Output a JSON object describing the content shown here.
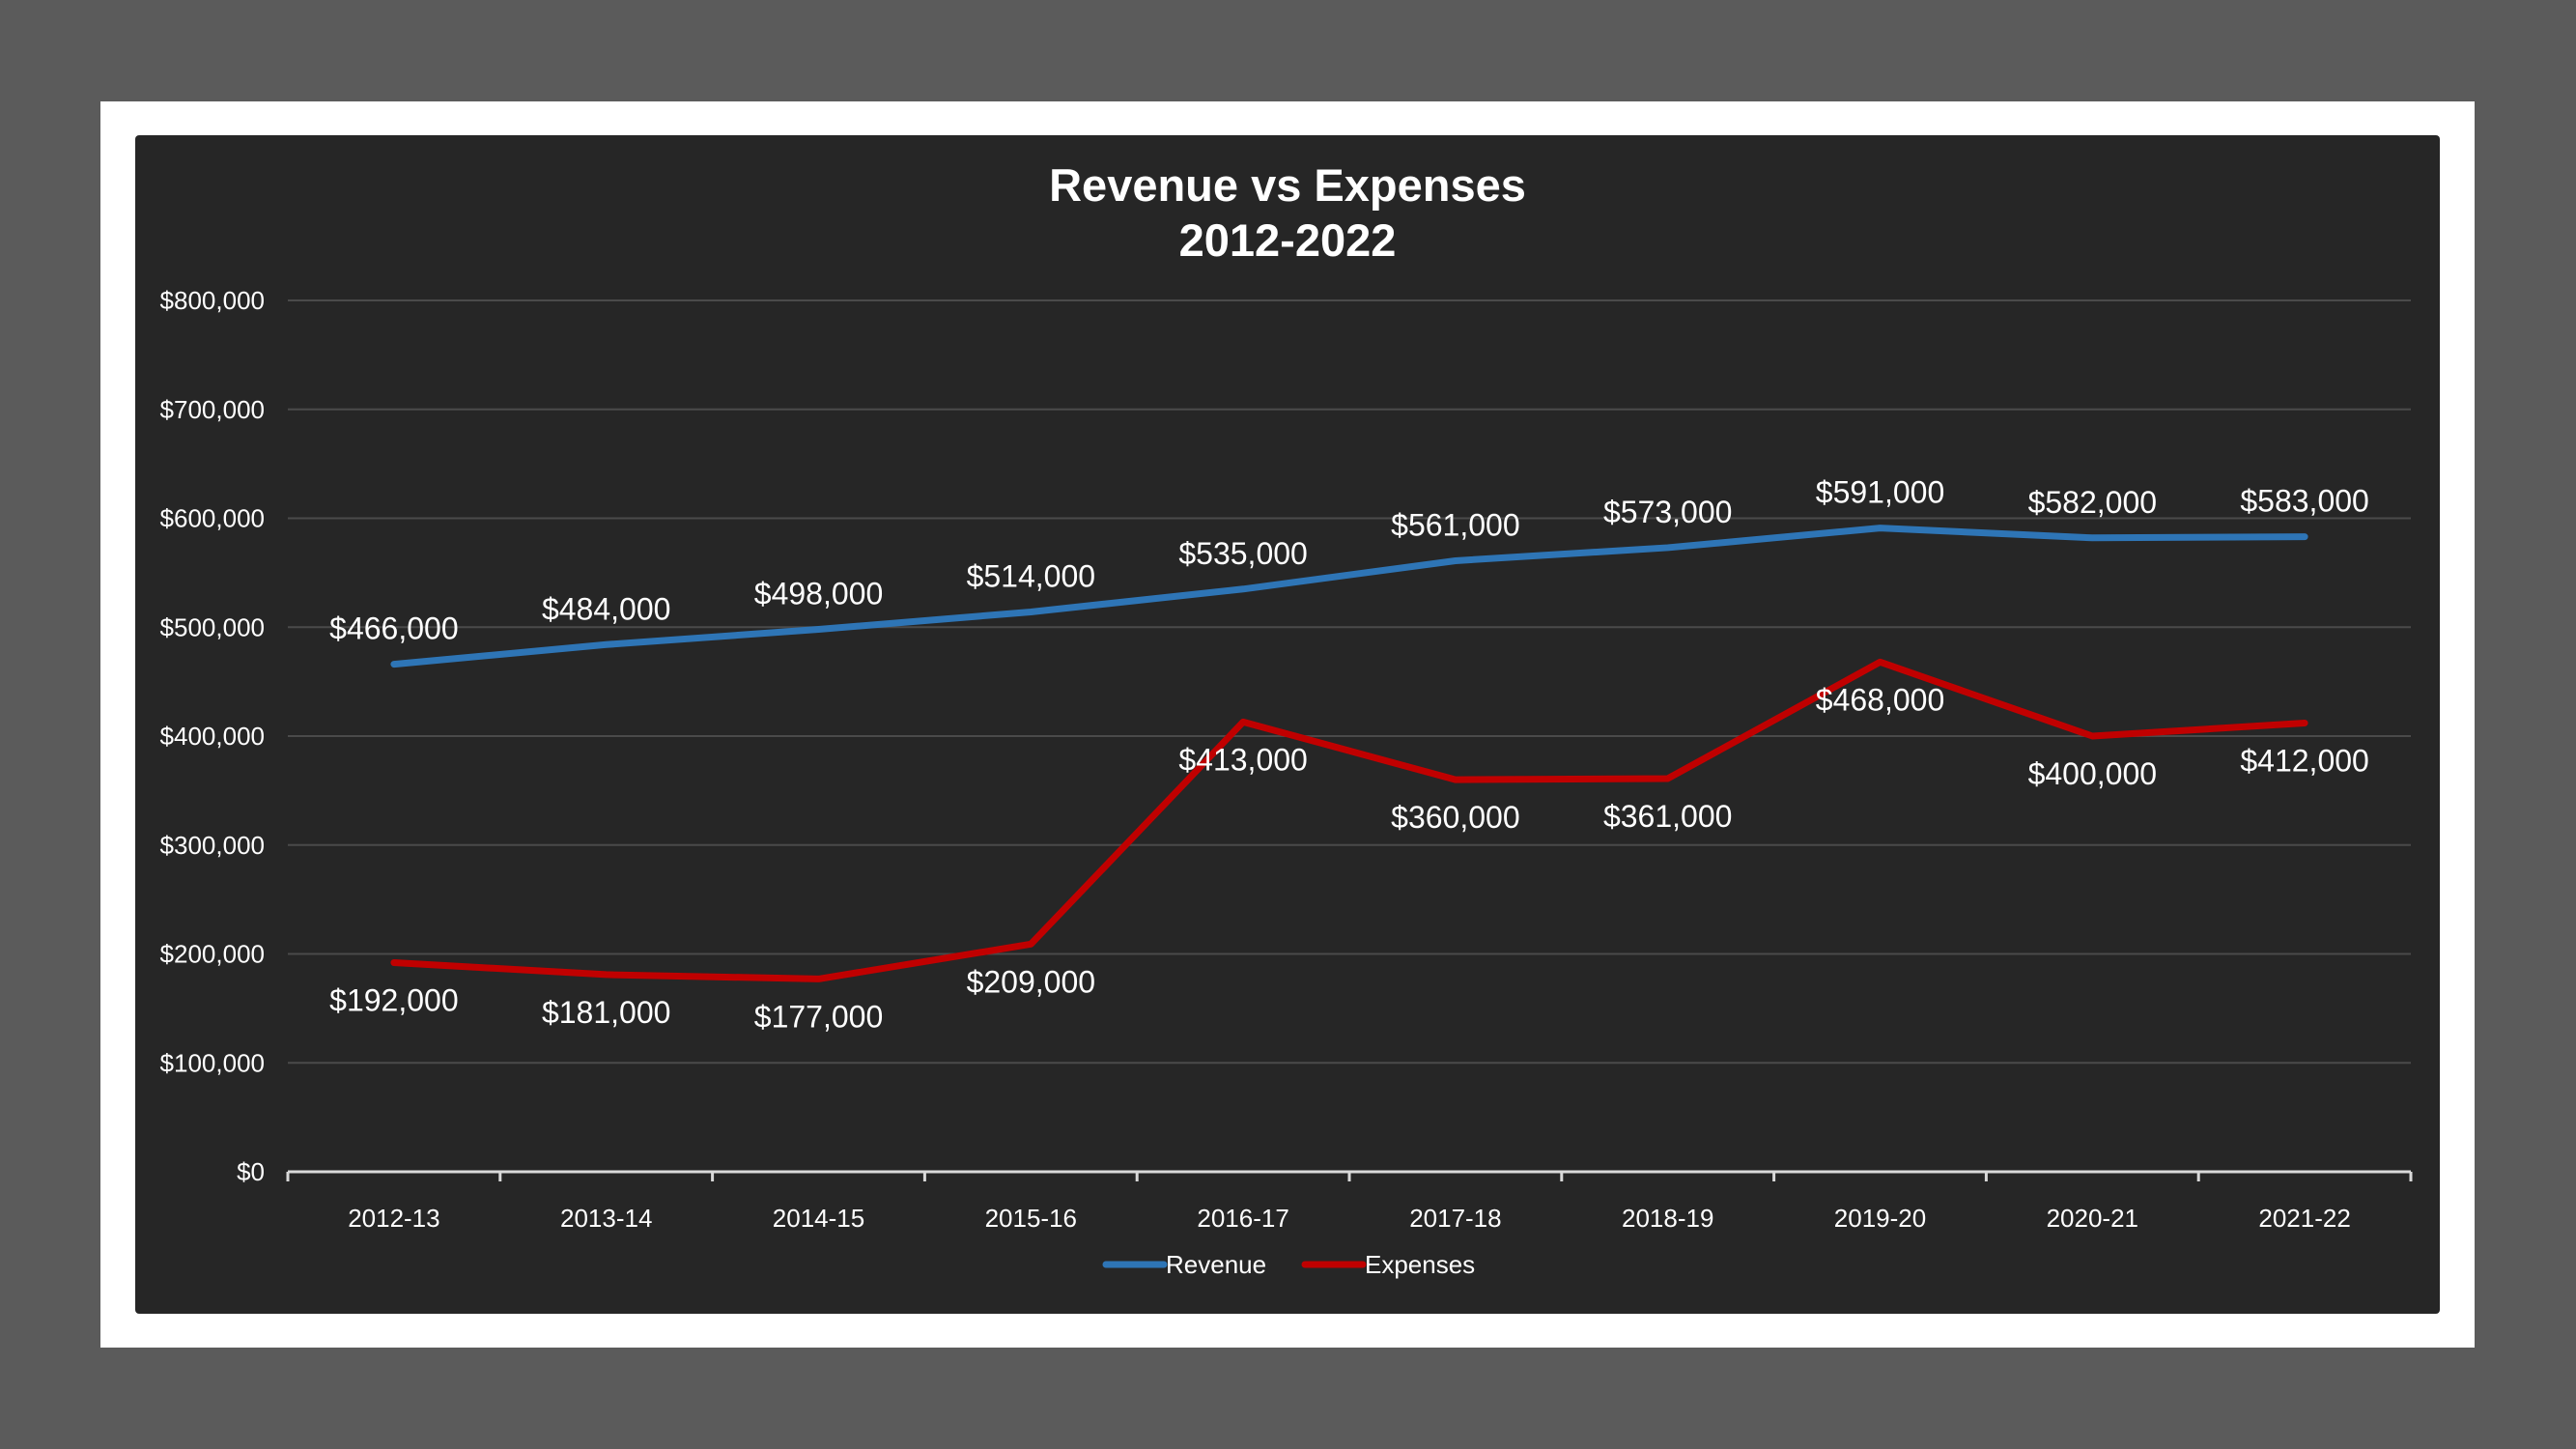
{
  "chart_data": {
    "type": "line",
    "title": "Revenue vs Expenses",
    "subtitle": "2012-2022",
    "categories": [
      "2012-13",
      "2013-14",
      "2014-15",
      "2015-16",
      "2016-17",
      "2017-18",
      "2018-19",
      "2019-20",
      "2020-21",
      "2021-22"
    ],
    "series": [
      {
        "name": "Revenue",
        "color": "#2e75b6",
        "values": [
          466000,
          484000,
          498000,
          514000,
          535000,
          561000,
          573000,
          591000,
          582000,
          583000
        ],
        "labels": [
          "$466,000",
          "$484,000",
          "$498,000",
          "$514,000",
          "$535,000",
          "$561,000",
          "$573,000",
          "$591,000",
          "$582,000",
          "$583,000"
        ]
      },
      {
        "name": "Expenses",
        "color": "#c00000",
        "values": [
          192000,
          181000,
          177000,
          209000,
          413000,
          360000,
          361000,
          468000,
          400000,
          412000
        ],
        "labels": [
          "$192,000",
          "$181,000",
          "$177,000",
          "$209,000",
          "$413,000",
          "$360,000",
          "$361,000",
          "$468,000",
          "$400,000",
          "$412,000"
        ]
      }
    ],
    "ylim": [
      0,
      800000
    ],
    "yticks": [
      0,
      100000,
      200000,
      300000,
      400000,
      500000,
      600000,
      700000,
      800000
    ],
    "ytick_labels": [
      "$0",
      "$100,000",
      "$200,000",
      "$300,000",
      "$400,000",
      "$500,000",
      "$600,000",
      "$700,000",
      "$800,000"
    ],
    "xlabel": "",
    "ylabel": "",
    "grid": true,
    "legend_position": "bottom"
  }
}
